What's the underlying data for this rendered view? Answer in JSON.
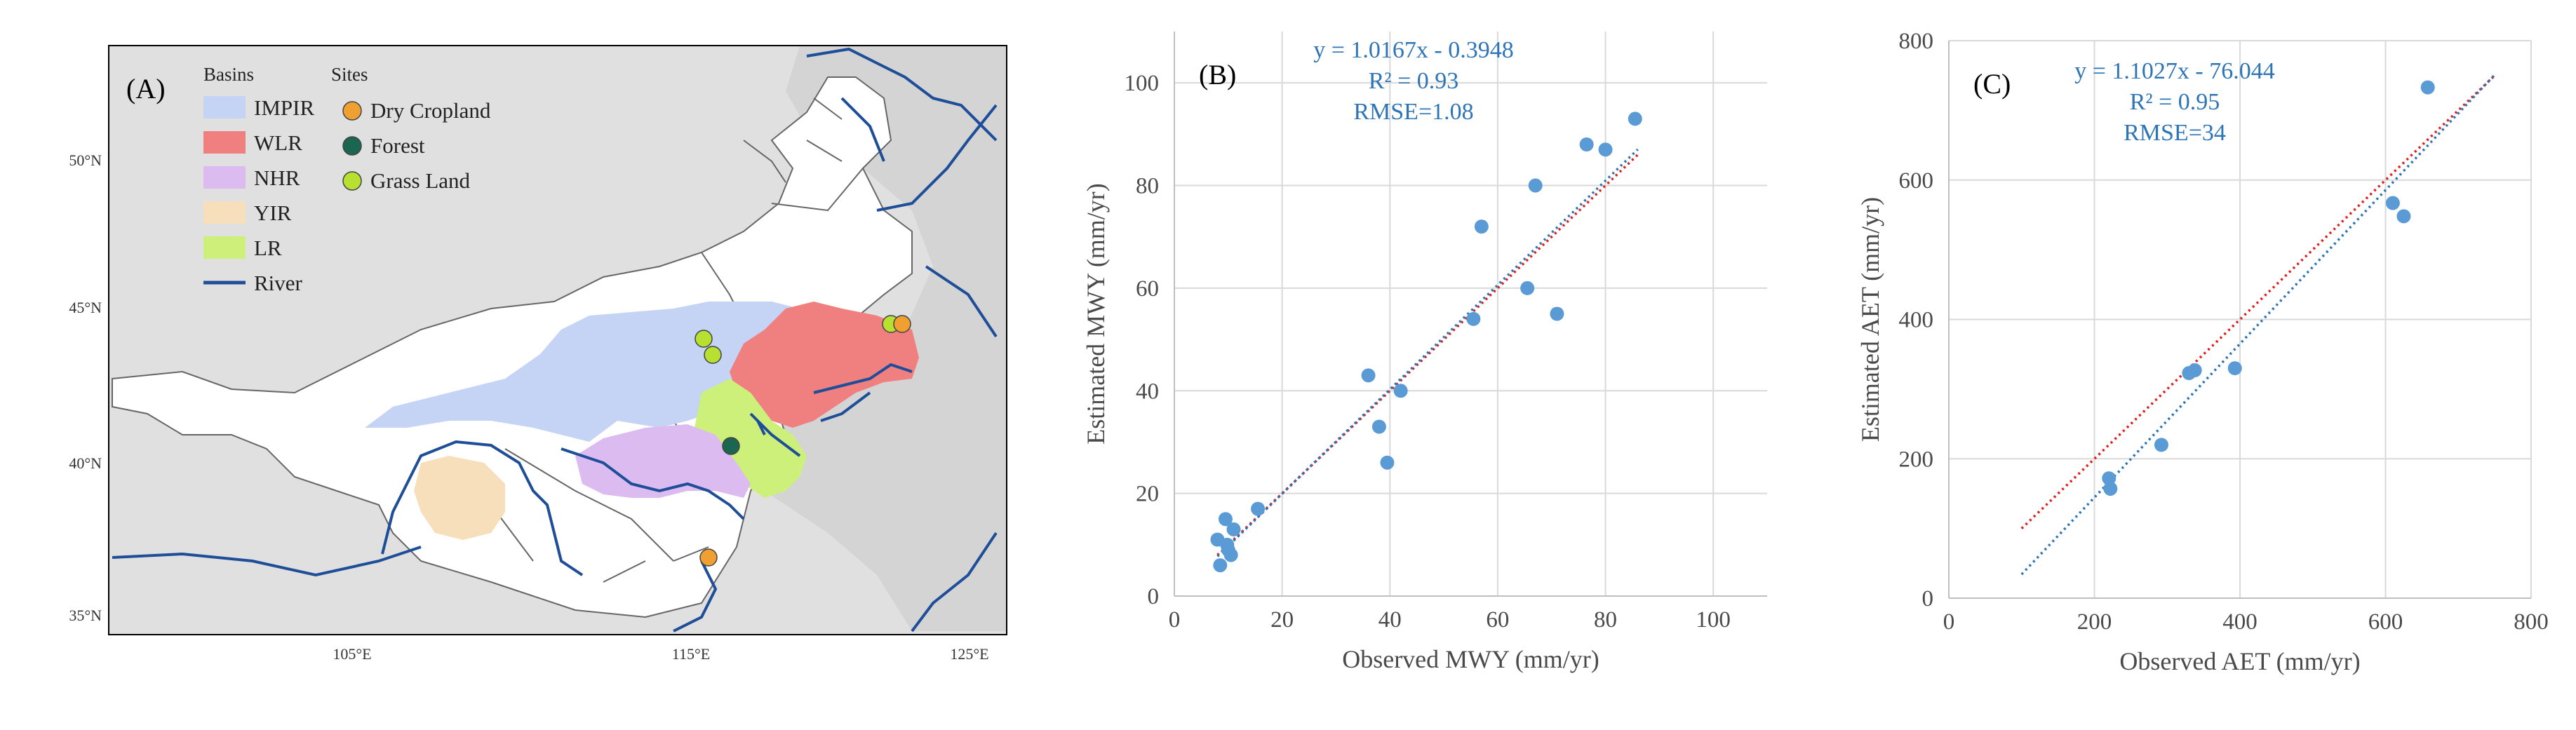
{
  "map": {
    "label": "(A)",
    "legend": {
      "basins_title": "Basins",
      "sites_title": "Sites",
      "basins": [
        {
          "name": "IMPIR",
          "color": "#c5d3f5"
        },
        {
          "name": "WLR",
          "color": "#f08080"
        },
        {
          "name": "NHR",
          "color": "#dcbcf0"
        },
        {
          "name": "YIR",
          "color": "#f7dfbc"
        },
        {
          "name": "LR",
          "color": "#ccf07a"
        },
        {
          "name": "River",
          "color": "#1f4e99"
        }
      ],
      "sites": [
        {
          "name": "Dry Cropland",
          "color": "#f0a030"
        },
        {
          "name": "Forest",
          "color": "#1b6650"
        },
        {
          "name": "Grass Land",
          "color": "#b8e030"
        }
      ]
    },
    "lat_ticks": [
      "50°N",
      "45°N",
      "40°N",
      "35°N"
    ],
    "lon_ticks": [
      "105°E",
      "115°E",
      "125°E"
    ]
  },
  "chart_data": [
    {
      "type": "scatter",
      "label": "(B)",
      "xlabel": "Observed MWY (mm/yr)",
      "ylabel": "Estimated MWY (mm/yr)",
      "xlim": [
        0,
        110
      ],
      "ylim": [
        0,
        110
      ],
      "xticks": [
        0,
        20,
        40,
        60,
        80,
        100
      ],
      "yticks": [
        0,
        20,
        40,
        60,
        80,
        100
      ],
      "equation": "y = 1.0167x - 0.3948",
      "r2": "R² = 0.93",
      "rmse": "RMSE=1.08",
      "x": [
        8,
        8.5,
        9.5,
        9.8,
        10,
        10.5,
        11,
        15.5,
        36,
        38,
        39.5,
        42,
        55.5,
        57,
        65.5,
        67,
        71,
        76.5,
        80,
        85.5
      ],
      "y": [
        11,
        6,
        15,
        10,
        9,
        8,
        13,
        17,
        43,
        33,
        26,
        40,
        54,
        72,
        60,
        80,
        55,
        88,
        87,
        93
      ],
      "trend": {
        "slope": 1.0167,
        "intercept": -0.3948,
        "x_range": [
          8,
          86
        ]
      },
      "identity": {
        "x_range": [
          8,
          86
        ]
      }
    },
    {
      "type": "scatter",
      "label": "(C)",
      "xlabel": "Observed AET (mm/yr)",
      "ylabel": "Estimated AET (mm/yr)",
      "xlim": [
        0,
        800
      ],
      "ylim": [
        0,
        800
      ],
      "xticks": [
        0,
        200,
        400,
        600,
        800
      ],
      "yticks": [
        0,
        200,
        400,
        600,
        800
      ],
      "equation": "y = 1.1027x - 76.044",
      "r2": "R² = 0.95",
      "rmse": "RMSE=34",
      "x": [
        220,
        222,
        292,
        330,
        338,
        393,
        610,
        625,
        658
      ],
      "y": [
        172,
        157,
        220,
        323,
        327,
        330,
        567,
        548,
        733
      ],
      "trend": {
        "slope": 1.1027,
        "intercept": -76.044,
        "x_range": [
          100,
          750
        ]
      },
      "identity": {
        "x_range": [
          100,
          750
        ]
      }
    }
  ]
}
